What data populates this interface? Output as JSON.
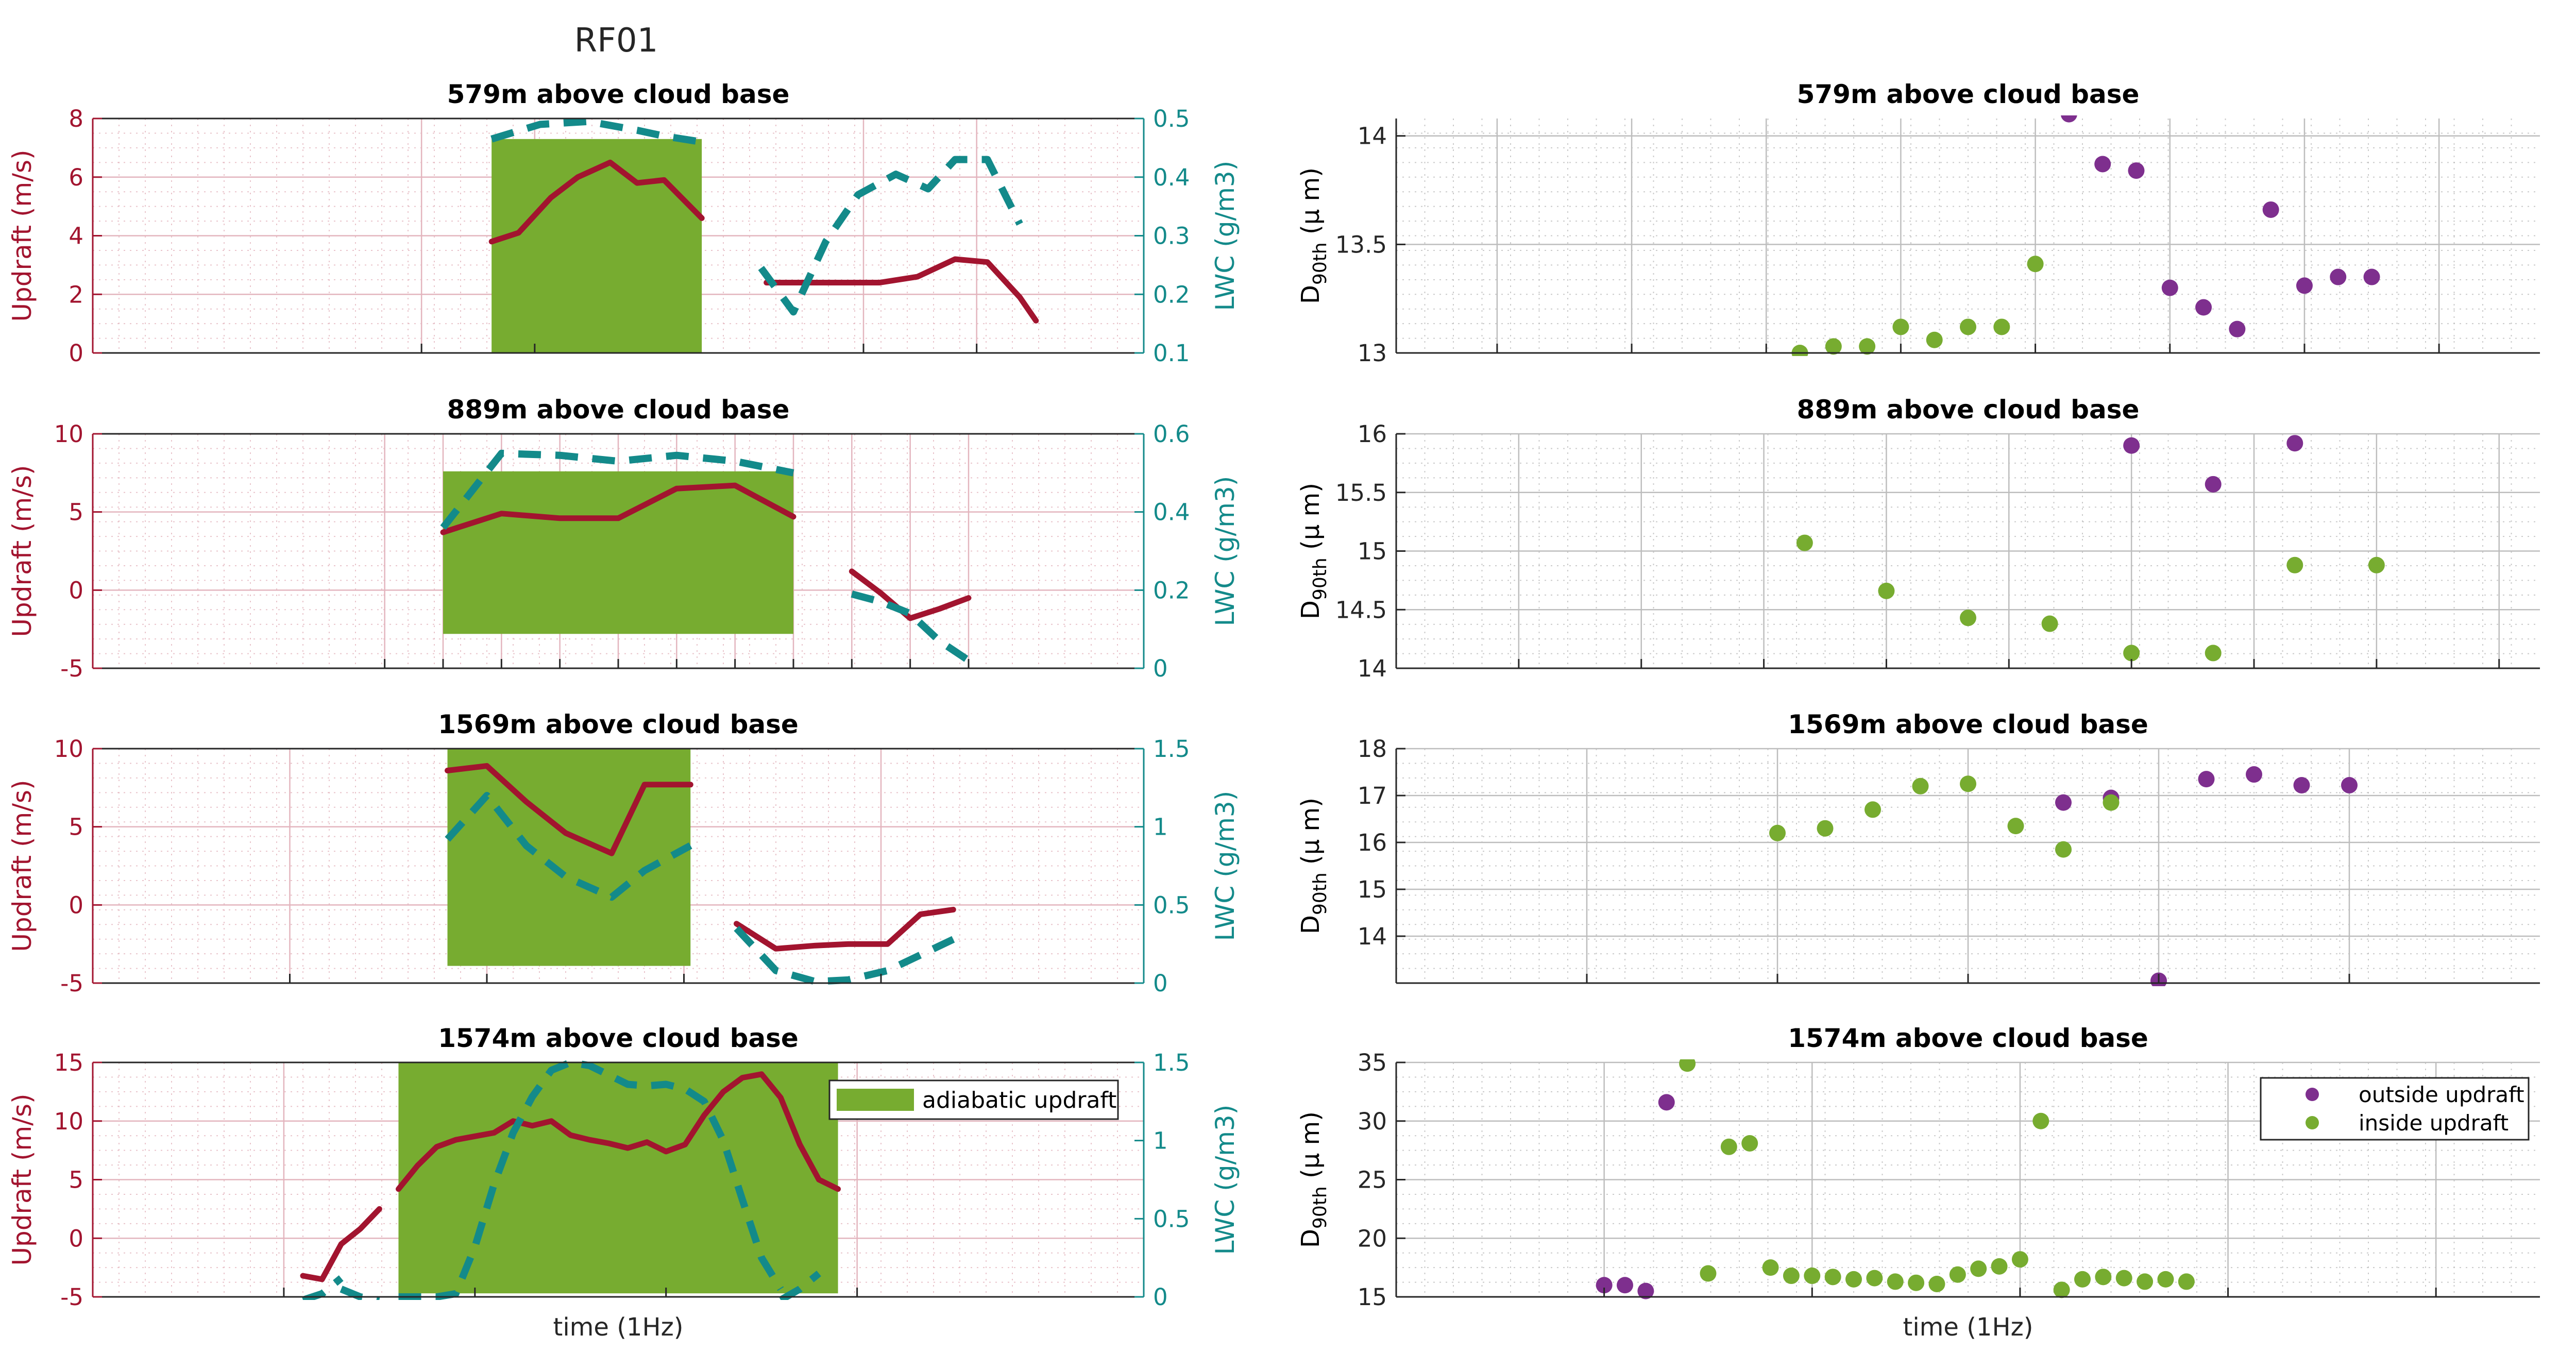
{
  "figure": {
    "suptitle": "RF01"
  },
  "colors": {
    "updraft": "#A2142F",
    "lwc": "#138A8A",
    "adiabatic": "#77AC30",
    "outside": "#7E2F8E",
    "inside": "#77AC30",
    "grid_left": "#E3B5BE",
    "grid_right": "#BDBDBD",
    "axis": "#262626"
  },
  "chart_data": [
    {
      "id": "left-1",
      "type": "line",
      "title": "579m above cloud base",
      "xlabel": "",
      "ylabel": "Updraft (m/s)",
      "y2label": "LWC (g/m3)",
      "xlim": [
        0,
        19.5
      ],
      "ylim": [
        0,
        8
      ],
      "y2lim": [
        0.1,
        0.5
      ],
      "yticks": [
        0,
        2,
        4,
        6,
        8
      ],
      "y2ticks": [
        0.1,
        0.2,
        0.3,
        0.4,
        0.5
      ],
      "y2tick_labels": [
        "0.1",
        "0.2",
        "0.3",
        "0.4",
        "0.5"
      ],
      "xticks": [
        6.1,
        8.2,
        14.3,
        16.4
      ],
      "adiabatic_span": [
        7.4,
        11.3
      ],
      "adiabatic_range": [
        0,
        7.3
      ],
      "series": [
        {
          "name": "updraft",
          "axis": "left",
          "segments": [
            {
              "x": [
                7.4,
                7.9,
                8.5,
                9.0,
                9.6,
                10.1,
                10.6,
                11.3
              ],
              "y": [
                3.8,
                4.1,
                5.3,
                6.0,
                6.5,
                5.8,
                5.9,
                4.6
              ]
            },
            {
              "x": [
                12.5,
                13.2,
                14.0,
                14.6,
                15.3,
                16.0,
                16.6,
                17.2
              ],
              "y": [
                2.4,
                2.4,
                2.4,
                2.4,
                2.6,
                3.2,
                3.1,
                1.9
              ]
            },
            {
              "x": [
                17.2,
                17.5
              ],
              "y": [
                1.9,
                1.1
              ]
            }
          ]
        },
        {
          "name": "LWC",
          "axis": "right",
          "segments": [
            {
              "x": [
                7.4,
                8.3,
                9.2,
                10.1,
                10.6,
                11.3
              ],
              "y": [
                0.465,
                0.49,
                0.495,
                0.48,
                0.47,
                0.46
              ]
            },
            {
              "x": [
                12.4,
                13.0,
                13.6,
                14.2,
                14.9,
                15.5,
                16.0,
                16.6,
                17.2
              ],
              "y": [
                0.245,
                0.17,
                0.29,
                0.37,
                0.405,
                0.38,
                0.43,
                0.43,
                0.32
              ]
            }
          ]
        }
      ]
    },
    {
      "id": "left-2",
      "type": "line",
      "title": "889m above cloud base",
      "xlabel": "",
      "ylabel": "Updraft (m/s)",
      "y2label": "LWC (g/m3)",
      "xlim": [
        0,
        18
      ],
      "ylim": [
        -5,
        10
      ],
      "y2lim": [
        0,
        0.6
      ],
      "yticks": [
        -5,
        0,
        5,
        10
      ],
      "y2ticks": [
        0,
        0.2,
        0.4,
        0.6
      ],
      "y2tick_labels": [
        "0",
        "0.2",
        "0.4",
        "0.6"
      ],
      "xticks": [
        5,
        6,
        7,
        8,
        9,
        10,
        11,
        12,
        13,
        14,
        15
      ],
      "adiabatic_span": [
        6,
        12
      ],
      "adiabatic_range": [
        -2.8,
        7.6
      ],
      "series": [
        {
          "name": "updraft",
          "axis": "left",
          "segments": [
            {
              "x": [
                6,
                7,
                8,
                9,
                10,
                11,
                12
              ],
              "y": [
                3.7,
                4.9,
                4.6,
                4.6,
                6.5,
                6.7,
                4.7
              ]
            },
            {
              "x": [
                13.0,
                13.5,
                14.0,
                14.5,
                15.0
              ],
              "y": [
                1.2,
                -0.2,
                -1.8,
                -1.2,
                -0.5
              ]
            }
          ]
        },
        {
          "name": "LWC",
          "axis": "right",
          "segments": [
            {
              "x": [
                6,
                7,
                8,
                9,
                10,
                11,
                12
              ],
              "y": [
                0.36,
                0.55,
                0.545,
                0.53,
                0.545,
                0.53,
                0.5
              ]
            },
            {
              "x": [
                13.0,
                13.5,
                14.0,
                14.5,
                15.0
              ],
              "y": [
                0.19,
                0.17,
                0.14,
                0.07,
                0.02
              ]
            }
          ]
        }
      ]
    },
    {
      "id": "left-3",
      "type": "line",
      "title": "1569m above cloud base",
      "xlabel": "",
      "ylabel": "Updraft (m/s)",
      "y2label": "LWC (g/m3)",
      "xlim": [
        0,
        16
      ],
      "ylim": [
        -5,
        10
      ],
      "y2lim": [
        0,
        1.5
      ],
      "yticks": [
        -5,
        0,
        5,
        10
      ],
      "y2ticks": [
        0,
        0.5,
        1,
        1.5
      ],
      "y2tick_labels": [
        "0",
        "0.5",
        "1",
        "1.5"
      ],
      "xticks": [
        3,
        6,
        9,
        12
      ],
      "adiabatic_span": [
        5.4,
        9.1
      ],
      "adiabatic_range": [
        -3.9,
        10
      ],
      "series": [
        {
          "name": "updraft",
          "axis": "left",
          "segments": [
            {
              "x": [
                5.4,
                6.0,
                6.6,
                7.2,
                7.9,
                8.4,
                9.1
              ],
              "y": [
                8.6,
                8.9,
                6.6,
                4.6,
                3.3,
                7.7,
                7.7
              ]
            },
            {
              "x": [
                9.8,
                10.4,
                11.0,
                11.5,
                12.1,
                12.6,
                13.1
              ],
              "y": [
                -1.2,
                -2.8,
                -2.6,
                -2.5,
                -2.5,
                -0.6,
                -0.3
              ]
            }
          ]
        },
        {
          "name": "LWC",
          "axis": "right",
          "segments": [
            {
              "x": [
                5.4,
                6.0,
                6.6,
                7.2,
                7.9,
                8.4,
                9.1
              ],
              "y": [
                0.92,
                1.2,
                0.88,
                0.68,
                0.55,
                0.72,
                0.88
              ]
            },
            {
              "x": [
                9.8,
                10.4,
                11.0,
                11.5,
                12.1,
                12.6,
                13.1
              ],
              "y": [
                0.35,
                0.08,
                0.01,
                0.02,
                0.08,
                0.18,
                0.28
              ]
            }
          ]
        }
      ]
    },
    {
      "id": "left-4",
      "type": "line",
      "title": "1574m above cloud base",
      "xlabel": "time (1Hz)",
      "ylabel": "Updraft (m/s)",
      "y2label": "LWC (g/m3)",
      "xlim": [
        0,
        55
      ],
      "ylim": [
        -5,
        15
      ],
      "y2lim": [
        0,
        1.5
      ],
      "yticks": [
        -5,
        0,
        5,
        10,
        15
      ],
      "y2ticks": [
        0,
        0.5,
        1,
        1.5
      ],
      "y2tick_labels": [
        "0",
        "0.5",
        "1",
        "1.5"
      ],
      "xticks": [
        10,
        20,
        30,
        40
      ],
      "adiabatic_span": [
        16,
        39
      ],
      "adiabatic_range": [
        -4.7,
        15
      ],
      "legend": {
        "label": "adiabatic updraft",
        "loc": "top-right"
      },
      "series": [
        {
          "name": "updraft",
          "axis": "left",
          "segments": [
            {
              "x": [
                11,
                12,
                13,
                14,
                15
              ],
              "y": [
                -3.2,
                -3.5,
                -0.5,
                0.8,
                2.5
              ]
            },
            {
              "x": [
                16,
                17,
                18,
                19,
                20,
                21,
                22,
                23,
                24,
                25,
                26,
                27,
                28,
                29,
                30,
                31,
                32,
                33,
                34,
                35,
                36,
                37,
                38,
                39
              ],
              "y": [
                4.2,
                6.2,
                7.8,
                8.4,
                8.7,
                9.0,
                10.0,
                9.6,
                10.0,
                8.8,
                8.4,
                8.1,
                7.7,
                8.2,
                7.4,
                8.0,
                10.5,
                12.5,
                13.7,
                14.0,
                12.0,
                8.0,
                5.0,
                4.2
              ]
            }
          ]
        },
        {
          "name": "LWC",
          "axis": "right",
          "segments": [
            {
              "x": [
                11,
                12,
                13
              ],
              "y": [
                -0.02,
                0.02,
                0.12
              ]
            },
            {
              "x": [
                13,
                14,
                15
              ],
              "y": [
                0.05,
                0.0,
                -0.02
              ]
            },
            {
              "x": [
                16,
                17,
                18,
                19,
                20,
                21,
                22,
                23,
                24,
                25,
                26,
                27,
                28,
                29,
                30,
                31,
                32,
                33,
                34,
                35,
                36
              ],
              "y": [
                0.0,
                0.0,
                0.0,
                0.02,
                0.32,
                0.72,
                1.05,
                1.28,
                1.45,
                1.5,
                1.48,
                1.42,
                1.36,
                1.35,
                1.36,
                1.33,
                1.25,
                1.0,
                0.62,
                0.25,
                0.05
              ]
            },
            {
              "x": [
                36,
                37,
                38
              ],
              "y": [
                -0.02,
                0.05,
                0.15
              ]
            }
          ]
        }
      ]
    },
    {
      "id": "right-1",
      "type": "scatter",
      "title": "579m above cloud base",
      "xlabel": "",
      "ylabel": "D_90th (μ m)",
      "xlim": [
        0,
        34
      ],
      "ylim": [
        13,
        14.08
      ],
      "yticks": [
        13,
        13.5,
        14
      ],
      "ytick_labels": [
        "13",
        "13.5",
        "14"
      ],
      "xticks": [
        3,
        7,
        11,
        15,
        19,
        23,
        27,
        31
      ],
      "series": [
        {
          "name": "outside updraft",
          "x": [
            20,
            21,
            22,
            23,
            24,
            25,
            26,
            27,
            28,
            29
          ],
          "y": [
            14.1,
            13.87,
            13.84,
            13.3,
            13.21,
            13.11,
            13.66,
            13.31,
            13.35,
            13.35
          ]
        },
        {
          "name": "inside updraft",
          "x": [
            12,
            13,
            14,
            15,
            16,
            17,
            18,
            19
          ],
          "y": [
            13.0,
            13.03,
            13.03,
            13.12,
            13.06,
            13.12,
            13.12,
            13.41
          ]
        }
      ]
    },
    {
      "id": "right-2",
      "type": "scatter",
      "title": "889m above cloud base",
      "xlabel": "",
      "ylabel": "D_90th (μ m)",
      "xlim": [
        0,
        28
      ],
      "ylim": [
        14,
        16
      ],
      "yticks": [
        14,
        14.5,
        15,
        15.5,
        16
      ],
      "ytick_labels": [
        "14",
        "14.5",
        "15",
        "15.5",
        "16"
      ],
      "xticks": [
        3,
        6,
        9,
        12,
        15,
        18,
        21,
        24,
        27
      ],
      "series": [
        {
          "name": "outside updraft",
          "x": [
            18,
            20,
            22
          ],
          "y": [
            15.9,
            15.57,
            15.92
          ]
        },
        {
          "name": "inside updraft",
          "x": [
            10,
            12,
            14,
            16,
            18,
            20,
            22,
            24
          ],
          "y": [
            15.07,
            14.66,
            14.43,
            14.38,
            14.13,
            14.13,
            14.88,
            14.88
          ]
        }
      ]
    },
    {
      "id": "right-3",
      "type": "scatter",
      "title": "1569m above cloud base",
      "xlabel": "",
      "ylabel": "D_90th (μ m)",
      "xlim": [
        0,
        24
      ],
      "ylim": [
        13,
        18
      ],
      "yticks": [
        14,
        15,
        16,
        17,
        18
      ],
      "ytick_labels": [
        "14",
        "15",
        "16",
        "17",
        "18"
      ],
      "xticks": [
        4,
        8,
        12,
        16,
        20
      ],
      "series": [
        {
          "name": "outside updraft",
          "x": [
            14,
            15,
            16,
            17,
            18,
            19,
            20
          ],
          "y": [
            16.85,
            16.95,
            13.05,
            17.35,
            17.45,
            17.22,
            17.22
          ]
        },
        {
          "name": "inside updraft",
          "x": [
            8,
            9,
            10,
            11,
            12,
            13,
            14,
            15
          ],
          "y": [
            16.2,
            16.3,
            16.7,
            17.2,
            17.25,
            16.35,
            15.85,
            16.85
          ]
        }
      ]
    },
    {
      "id": "right-4",
      "type": "scatter",
      "title": "1574m above cloud base",
      "xlabel": "time (1Hz)",
      "ylabel": "D_90th (μ m)",
      "xlim": [
        0,
        55
      ],
      "ylim": [
        15,
        35
      ],
      "yticks": [
        15,
        20,
        25,
        30,
        35
      ],
      "ytick_labels": [
        "15",
        "20",
        "25",
        "30",
        "35"
      ],
      "xticks": [
        10,
        20,
        30,
        40,
        50
      ],
      "legend": {
        "labels": [
          "outside updraft",
          "inside updraft"
        ],
        "loc": "top-right"
      },
      "series": [
        {
          "name": "outside updraft",
          "x": [
            10,
            11,
            12,
            13
          ],
          "y": [
            16.0,
            16.0,
            15.5,
            31.6
          ]
        },
        {
          "name": "inside updraft",
          "x": [
            14,
            15,
            16,
            17,
            18,
            19,
            20,
            21,
            22,
            23,
            24,
            25,
            26,
            27,
            28,
            29,
            30,
            31,
            32,
            33,
            34,
            35,
            36,
            37,
            38
          ],
          "y": [
            34.9,
            17.0,
            27.8,
            28.1,
            17.5,
            16.8,
            16.8,
            16.7,
            16.5,
            16.6,
            16.3,
            16.2,
            16.1,
            16.9,
            17.4,
            17.6,
            18.2,
            30.0,
            15.6,
            16.5,
            16.7,
            16.6,
            16.3,
            16.5,
            16.3
          ]
        }
      ]
    }
  ]
}
